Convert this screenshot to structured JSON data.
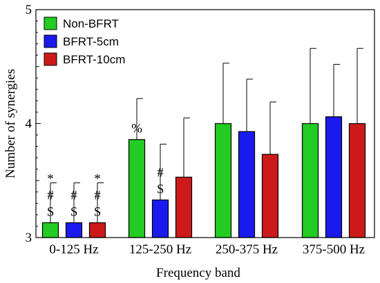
{
  "chart_data": {
    "type": "bar",
    "xlabel": "Frequency band",
    "ylabel": "Number of synergies",
    "ylim": [
      3,
      5
    ],
    "yticks": [
      3,
      4,
      5
    ],
    "categories": [
      "0-125 Hz",
      "125-250 Hz",
      "250-375 Hz",
      "375-500 Hz"
    ],
    "legend_position": "top-left",
    "grid": false,
    "series": [
      {
        "name": "Non-BFRT",
        "color": "#22cc22",
        "values": [
          3.13,
          3.86,
          4.0,
          4.0
        ],
        "errors": [
          0.35,
          0.36,
          0.53,
          0.66
        ]
      },
      {
        "name": "BFRT-5cm",
        "color": "#1a1aee",
        "values": [
          3.13,
          3.33,
          3.93,
          4.06
        ],
        "errors": [
          0.35,
          0.49,
          0.46,
          0.46
        ]
      },
      {
        "name": "BFRT-10cm",
        "color": "#cc1a1a",
        "values": [
          3.13,
          3.53,
          3.73,
          4.0
        ],
        "errors": [
          0.35,
          0.52,
          0.46,
          0.66
        ]
      }
    ],
    "annotations": [
      {
        "category": 0,
        "series": 0,
        "lines": [
          "*",
          "#",
          "$"
        ]
      },
      {
        "category": 0,
        "series": 1,
        "lines": [
          "#",
          "$"
        ]
      },
      {
        "category": 0,
        "series": 2,
        "lines": [
          "*",
          "#",
          "$"
        ]
      },
      {
        "category": 1,
        "series": 0,
        "lines": [
          "%"
        ]
      },
      {
        "category": 1,
        "series": 1,
        "lines": [
          "#",
          "$"
        ]
      }
    ]
  }
}
